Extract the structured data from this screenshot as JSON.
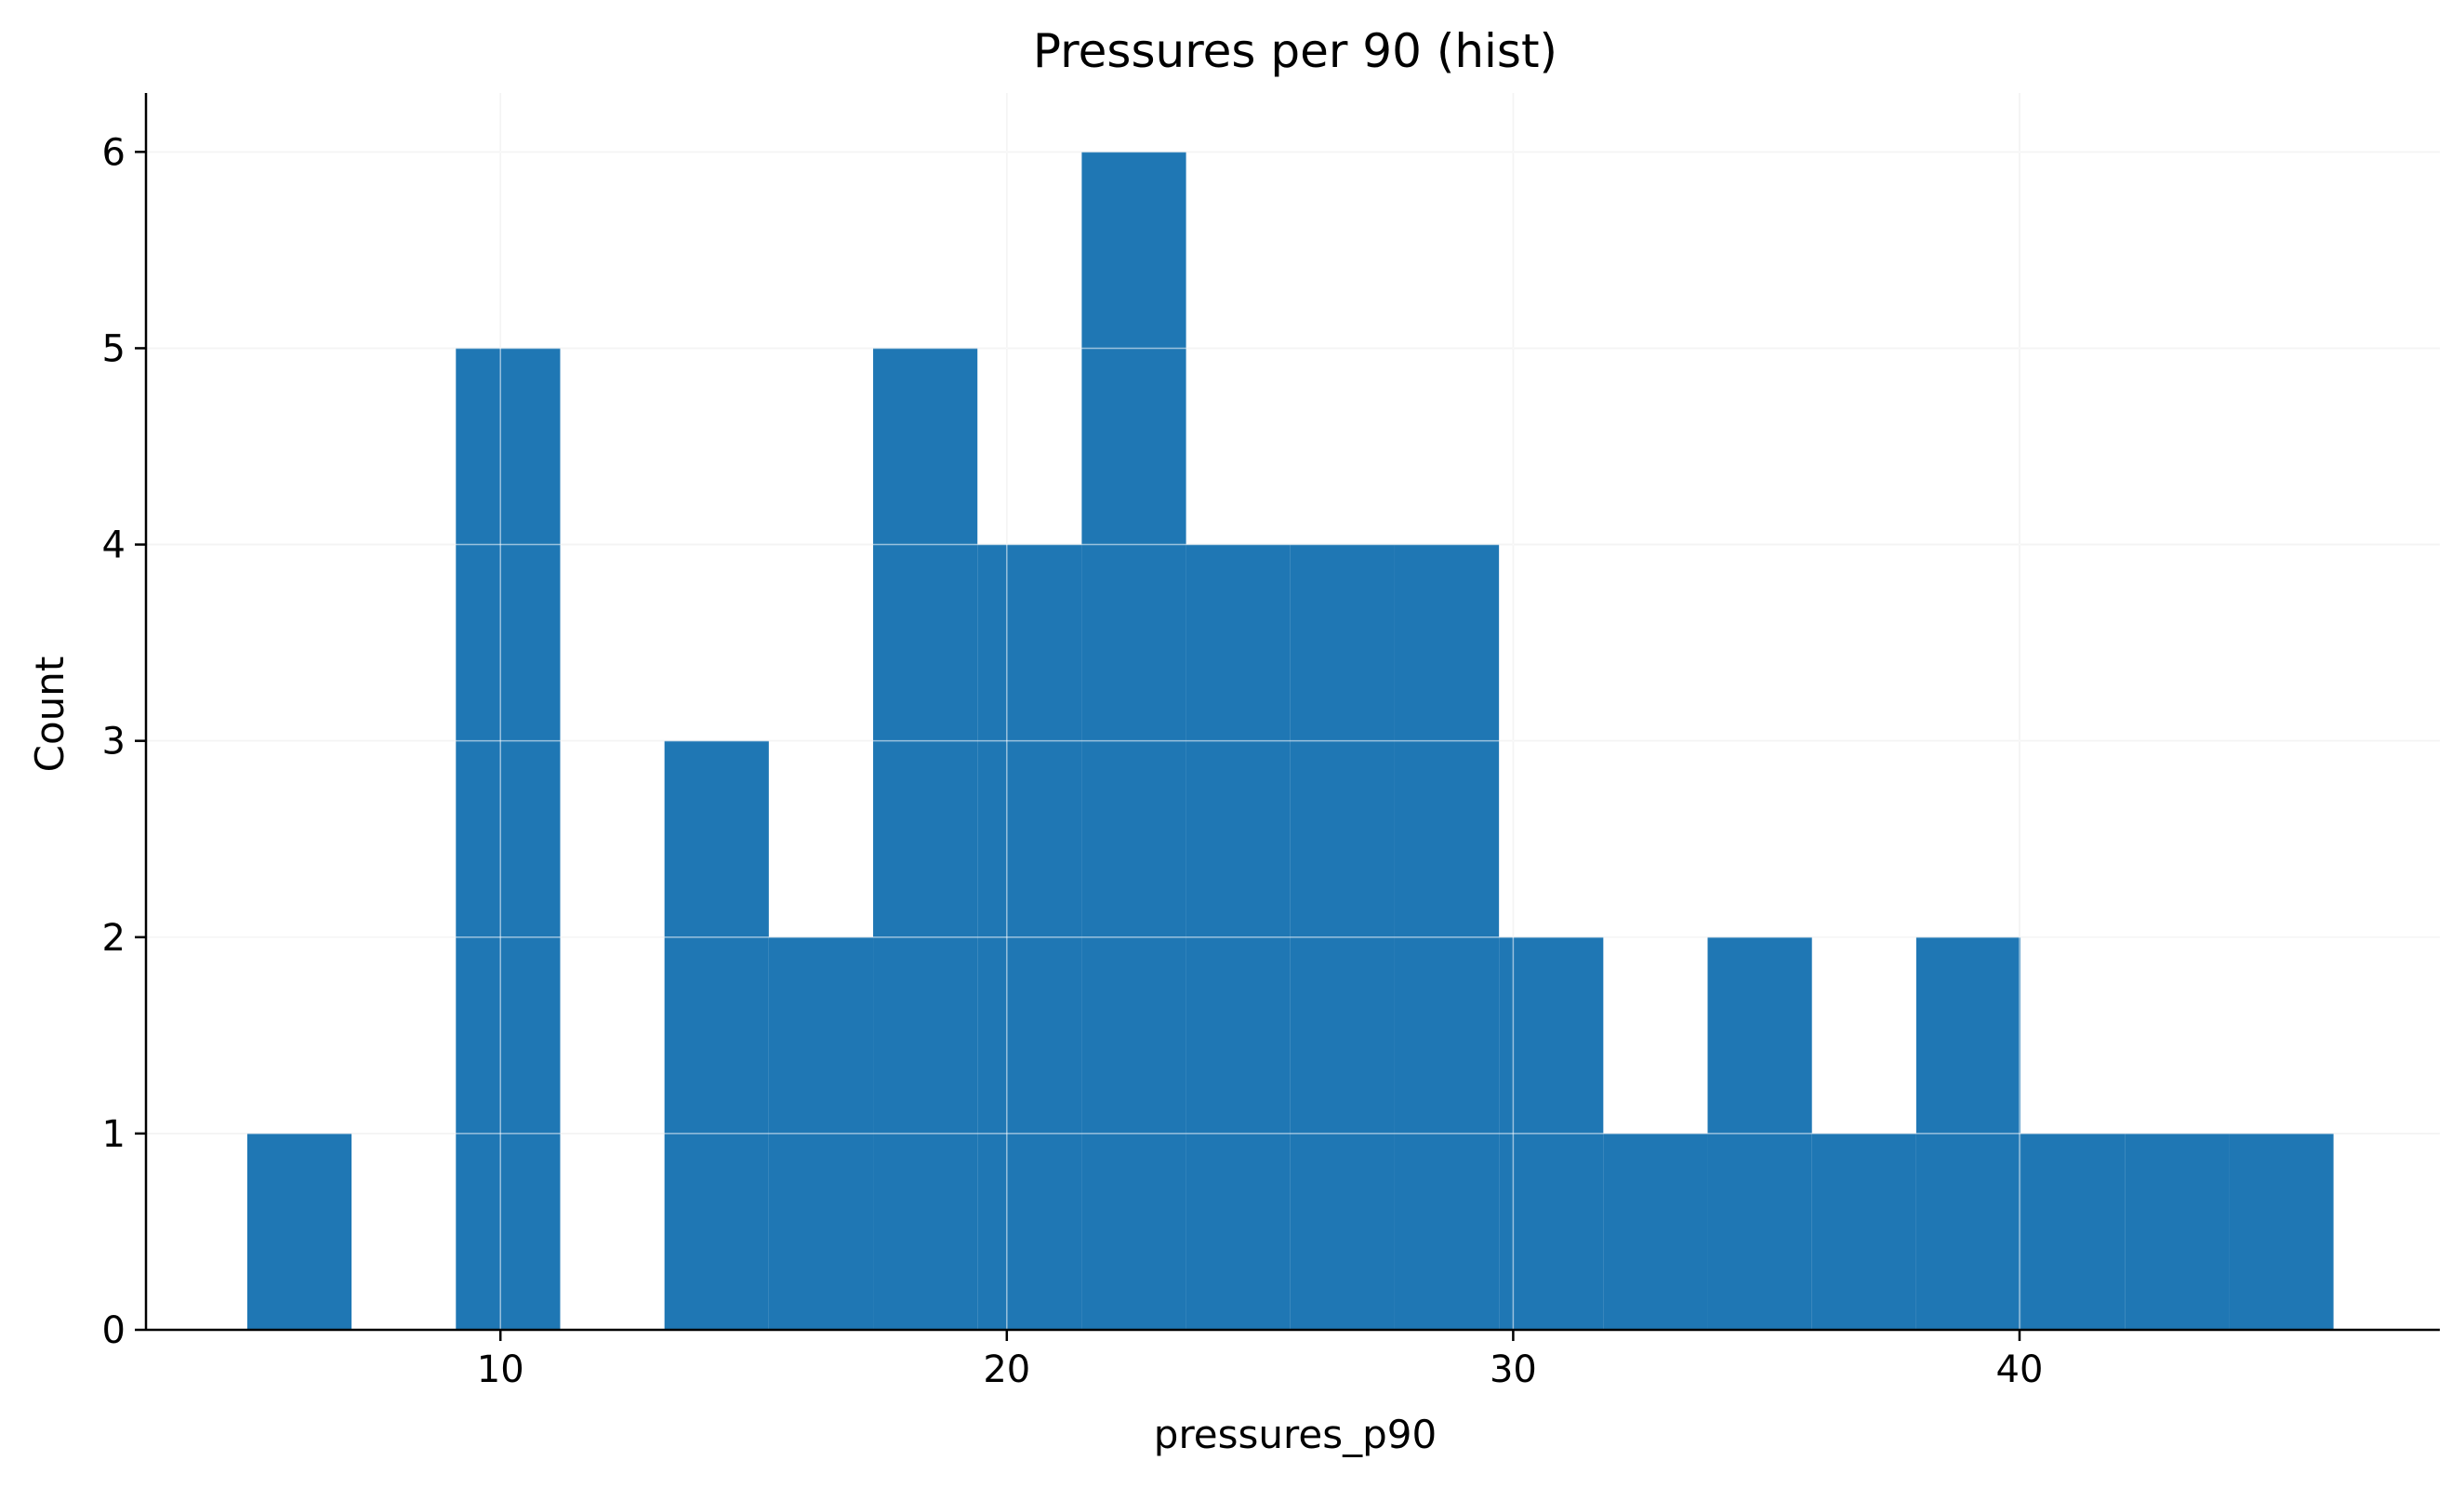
{
  "chart_data": {
    "type": "bar",
    "title": "Pressures per 90 (hist)",
    "xlabel": "pressures_p90",
    "ylabel": "Count",
    "xlim": [
      3.0,
      48.3
    ],
    "ylim": [
      0,
      6.3
    ],
    "xticks": [
      10,
      20,
      30,
      40
    ],
    "yticks": [
      0,
      1,
      2,
      3,
      4,
      5,
      6
    ],
    "grid": true,
    "bar_color": "#1f77b4",
    "bins": [
      {
        "x0": 5.0,
        "x1": 7.06,
        "count": 1
      },
      {
        "x0": 7.06,
        "x1": 9.12,
        "count": 0
      },
      {
        "x0": 9.12,
        "x1": 11.18,
        "count": 5
      },
      {
        "x0": 11.18,
        "x1": 13.24,
        "count": 0
      },
      {
        "x0": 13.24,
        "x1": 15.3,
        "count": 3
      },
      {
        "x0": 15.3,
        "x1": 17.36,
        "count": 2
      },
      {
        "x0": 17.36,
        "x1": 19.42,
        "count": 5
      },
      {
        "x0": 19.42,
        "x1": 21.48,
        "count": 4
      },
      {
        "x0": 21.48,
        "x1": 23.54,
        "count": 6
      },
      {
        "x0": 23.54,
        "x1": 25.6,
        "count": 4
      },
      {
        "x0": 25.6,
        "x1": 27.66,
        "count": 4
      },
      {
        "x0": 27.66,
        "x1": 29.72,
        "count": 4
      },
      {
        "x0": 29.72,
        "x1": 31.78,
        "count": 2
      },
      {
        "x0": 31.78,
        "x1": 33.84,
        "count": 1
      },
      {
        "x0": 33.84,
        "x1": 35.9,
        "count": 2
      },
      {
        "x0": 35.9,
        "x1": 37.96,
        "count": 1
      },
      {
        "x0": 37.96,
        "x1": 40.02,
        "count": 2
      },
      {
        "x0": 40.02,
        "x1": 42.08,
        "count": 1
      },
      {
        "x0": 42.08,
        "x1": 44.14,
        "count": 1
      },
      {
        "x0": 44.14,
        "x1": 46.2,
        "count": 1
      }
    ]
  }
}
